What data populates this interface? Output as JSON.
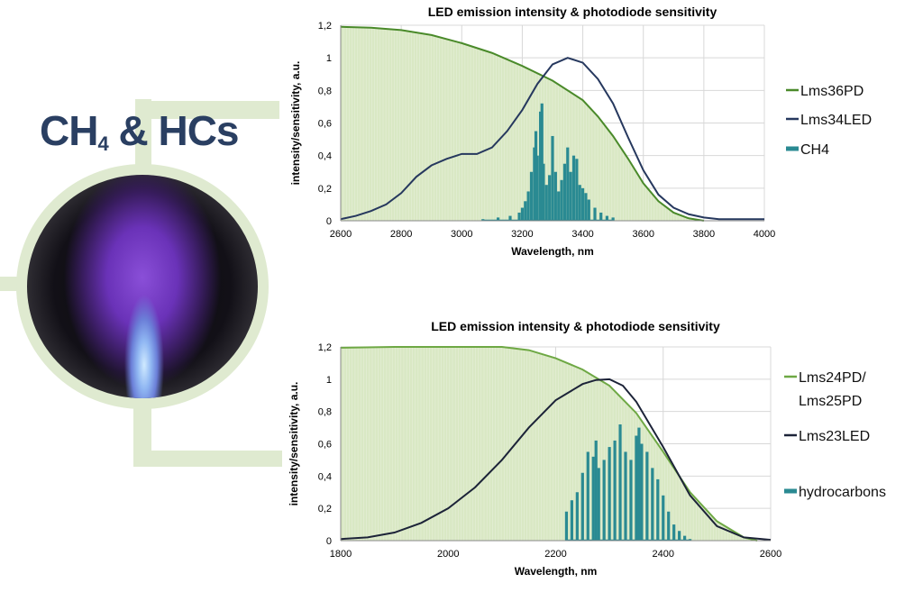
{
  "decoration": {
    "title_main": "CH",
    "title_sub": "4",
    "title_rest": " & HCs",
    "accent_color": "#dfead0",
    "title_color": "#2a3f62"
  },
  "chart_data": [
    {
      "type": "line",
      "title": "LED emission intensity & photodiode sensitivity",
      "xlabel": "Wavelength, nm",
      "ylabel": "intensity/sensitivity, a.u.",
      "xlim": [
        2600,
        4000
      ],
      "ylim": [
        0,
        1.2
      ],
      "xticks": [
        2600,
        2800,
        3000,
        3200,
        3400,
        3600,
        3800,
        4000
      ],
      "xtick_labels": [
        "2600",
        "2800",
        "3000",
        "3200",
        "3400",
        "3600",
        "3800",
        "4000"
      ],
      "yticks": [
        0,
        0.2,
        0.4,
        0.6,
        0.8,
        1,
        1.2
      ],
      "ytick_labels": [
        "0",
        "0,2",
        "0,4",
        "0,6",
        "0,8",
        "1",
        "1,2"
      ],
      "grid": true,
      "legend_position": "right",
      "series": [
        {
          "name": "Lms36PD",
          "kind": "line+area",
          "color": "#4a8a2a",
          "fill": "#d9e8c4",
          "x": [
            2600,
            2700,
            2800,
            2900,
            3000,
            3100,
            3200,
            3300,
            3400,
            3450,
            3500,
            3550,
            3600,
            3650,
            3700,
            3750,
            3800
          ],
          "y": [
            1.19,
            1.185,
            1.17,
            1.14,
            1.09,
            1.03,
            0.95,
            0.86,
            0.74,
            0.64,
            0.52,
            0.38,
            0.23,
            0.12,
            0.05,
            0.015,
            0
          ]
        },
        {
          "name": "Lms34LED",
          "kind": "line",
          "color": "#26385e",
          "x": [
            2600,
            2650,
            2700,
            2750,
            2800,
            2850,
            2900,
            2950,
            3000,
            3050,
            3100,
            3150,
            3200,
            3250,
            3300,
            3350,
            3400,
            3450,
            3500,
            3550,
            3600,
            3650,
            3700,
            3750,
            3800,
            3850,
            3900,
            3950,
            4000
          ],
          "y": [
            0.01,
            0.03,
            0.06,
            0.1,
            0.17,
            0.27,
            0.34,
            0.38,
            0.41,
            0.41,
            0.45,
            0.55,
            0.68,
            0.84,
            0.96,
            1.0,
            0.97,
            0.87,
            0.72,
            0.51,
            0.31,
            0.16,
            0.08,
            0.04,
            0.02,
            0.01,
            0.01,
            0.01,
            0.01
          ]
        },
        {
          "name": "CH4",
          "kind": "spikes",
          "color": "#2a8a92",
          "x": [
            3070,
            3120,
            3160,
            3190,
            3200,
            3210,
            3220,
            3230,
            3240,
            3245,
            3250,
            3260,
            3265,
            3270,
            3280,
            3290,
            3300,
            3310,
            3320,
            3330,
            3340,
            3350,
            3360,
            3370,
            3380,
            3390,
            3400,
            3410,
            3420,
            3440,
            3460,
            3480,
            3500
          ],
          "y": [
            0.01,
            0.02,
            0.03,
            0.05,
            0.08,
            0.12,
            0.18,
            0.3,
            0.45,
            0.55,
            0.4,
            0.67,
            0.72,
            0.35,
            0.22,
            0.28,
            0.52,
            0.3,
            0.18,
            0.25,
            0.35,
            0.45,
            0.3,
            0.4,
            0.38,
            0.22,
            0.2,
            0.17,
            0.13,
            0.08,
            0.05,
            0.03,
            0.02
          ]
        }
      ]
    },
    {
      "type": "line",
      "title": "LED emission intensity & photodiode sensitivity",
      "xlabel": "Wavelength, nm",
      "ylabel": "intensity/sensitivity, a.u.",
      "xlim": [
        1800,
        2600
      ],
      "ylim": [
        0,
        1.2
      ],
      "xticks": [
        1800,
        2000,
        2200,
        2400,
        2600
      ],
      "xtick_labels": [
        "1800",
        "2000",
        "2200",
        "2400",
        "2600"
      ],
      "yticks": [
        0,
        0.2,
        0.4,
        0.6,
        0.8,
        1,
        1.2
      ],
      "ytick_labels": [
        "0",
        "0,2",
        "0,4",
        "0,6",
        "0,8",
        "1",
        "1,2"
      ],
      "grid": true,
      "legend_position": "right",
      "series": [
        {
          "name": "Lms24PD/ Lms25PD",
          "name_lines": [
            "Lms24PD/",
            "Lms25PD"
          ],
          "kind": "line+area",
          "color": "#6ea844",
          "fill": "#d9e8c4",
          "x": [
            1800,
            1900,
            2000,
            2100,
            2150,
            2200,
            2250,
            2300,
            2350,
            2400,
            2450,
            2500,
            2550,
            2575
          ],
          "y": [
            1.195,
            1.2,
            1.2,
            1.2,
            1.18,
            1.13,
            1.06,
            0.96,
            0.79,
            0.55,
            0.3,
            0.12,
            0.02,
            0
          ]
        },
        {
          "name": "Lms23LED",
          "kind": "line",
          "color": "#1c2338",
          "x": [
            1800,
            1850,
            1900,
            1950,
            2000,
            2050,
            2100,
            2150,
            2200,
            2250,
            2275,
            2300,
            2325,
            2350,
            2400,
            2450,
            2500,
            2550,
            2600
          ],
          "y": [
            0.01,
            0.02,
            0.05,
            0.11,
            0.2,
            0.33,
            0.5,
            0.7,
            0.87,
            0.97,
            0.995,
            1.0,
            0.96,
            0.86,
            0.58,
            0.28,
            0.09,
            0.02,
            0.005
          ]
        },
        {
          "name": "hydrocarbons",
          "kind": "spikes",
          "color": "#2a8a92",
          "x": [
            2220,
            2230,
            2240,
            2250,
            2260,
            2270,
            2275,
            2280,
            2290,
            2300,
            2310,
            2320,
            2330,
            2340,
            2350,
            2355,
            2360,
            2370,
            2380,
            2390,
            2400,
            2410,
            2420,
            2430,
            2440,
            2450
          ],
          "y": [
            0.18,
            0.25,
            0.3,
            0.42,
            0.55,
            0.52,
            0.62,
            0.45,
            0.5,
            0.58,
            0.62,
            0.72,
            0.55,
            0.5,
            0.65,
            0.7,
            0.6,
            0.55,
            0.45,
            0.38,
            0.28,
            0.18,
            0.1,
            0.06,
            0.03,
            0.01
          ]
        }
      ]
    }
  ]
}
